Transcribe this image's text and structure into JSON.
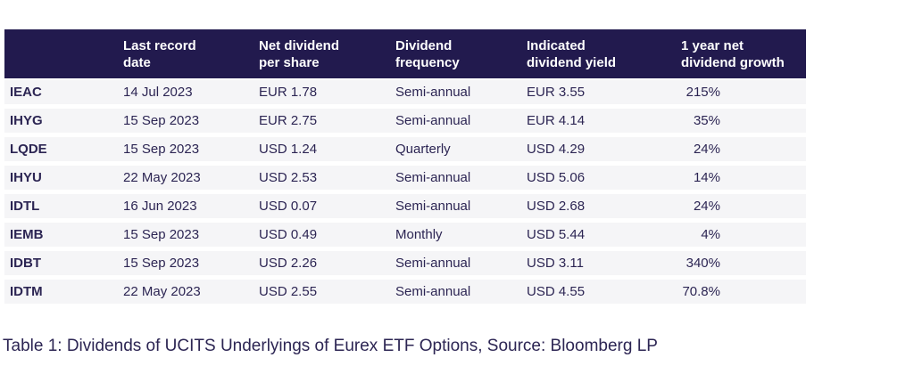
{
  "colors": {
    "header-bg": "#221a4e",
    "header-text": "#ffffff",
    "body-text": "#2c2553",
    "row-bg": "#f5f5f7",
    "page-bg": "#ffffff"
  },
  "table": {
    "headers": [
      "",
      "Last record\ndate",
      "Net dividend\nper share",
      "Dividend\nfrequency",
      "Indicated\ndividend yield",
      "1 year net\ndividend growth"
    ],
    "rows": [
      {
        "ticker": "IEAC",
        "last_record_date": "14 Jul 2023",
        "net_dividend_per_share": "EUR 1.78",
        "dividend_frequency": "Semi-annual",
        "indicated_dividend_yield": "EUR 3.55",
        "one_year_net_dividend_growth": "215%"
      },
      {
        "ticker": "IHYG",
        "last_record_date": "15 Sep 2023",
        "net_dividend_per_share": "EUR 2.75",
        "dividend_frequency": "Semi-annual",
        "indicated_dividend_yield": "EUR 4.14",
        "one_year_net_dividend_growth": "35%"
      },
      {
        "ticker": "LQDE",
        "last_record_date": "15 Sep 2023",
        "net_dividend_per_share": "USD 1.24",
        "dividend_frequency": "Quarterly",
        "indicated_dividend_yield": "USD 4.29",
        "one_year_net_dividend_growth": "24%"
      },
      {
        "ticker": "IHYU",
        "last_record_date": "22 May 2023",
        "net_dividend_per_share": "USD 2.53",
        "dividend_frequency": "Semi-annual",
        "indicated_dividend_yield": "USD 5.06",
        "one_year_net_dividend_growth": "14%"
      },
      {
        "ticker": "IDTL",
        "last_record_date": "16 Jun 2023",
        "net_dividend_per_share": "USD 0.07",
        "dividend_frequency": "Semi-annual",
        "indicated_dividend_yield": "USD 2.68",
        "one_year_net_dividend_growth": "24%"
      },
      {
        "ticker": "IEMB",
        "last_record_date": "15 Sep 2023",
        "net_dividend_per_share": "USD 0.49",
        "dividend_frequency": "Monthly",
        "indicated_dividend_yield": "USD 5.44",
        "one_year_net_dividend_growth": "4%"
      },
      {
        "ticker": "IDBT",
        "last_record_date": "15 Sep 2023",
        "net_dividend_per_share": "USD 2.26",
        "dividend_frequency": "Semi-annual",
        "indicated_dividend_yield": "USD 3.11",
        "one_year_net_dividend_growth": "340%"
      },
      {
        "ticker": "IDTM",
        "last_record_date": "22 May 2023",
        "net_dividend_per_share": "USD 2.55",
        "dividend_frequency": "Semi-annual",
        "indicated_dividend_yield": "USD 4.55",
        "one_year_net_dividend_growth": "70.8%"
      }
    ]
  },
  "caption": "Table 1: Dividends of UCITS Underlyings of Eurex ETF Options, Source: Bloomberg LP"
}
